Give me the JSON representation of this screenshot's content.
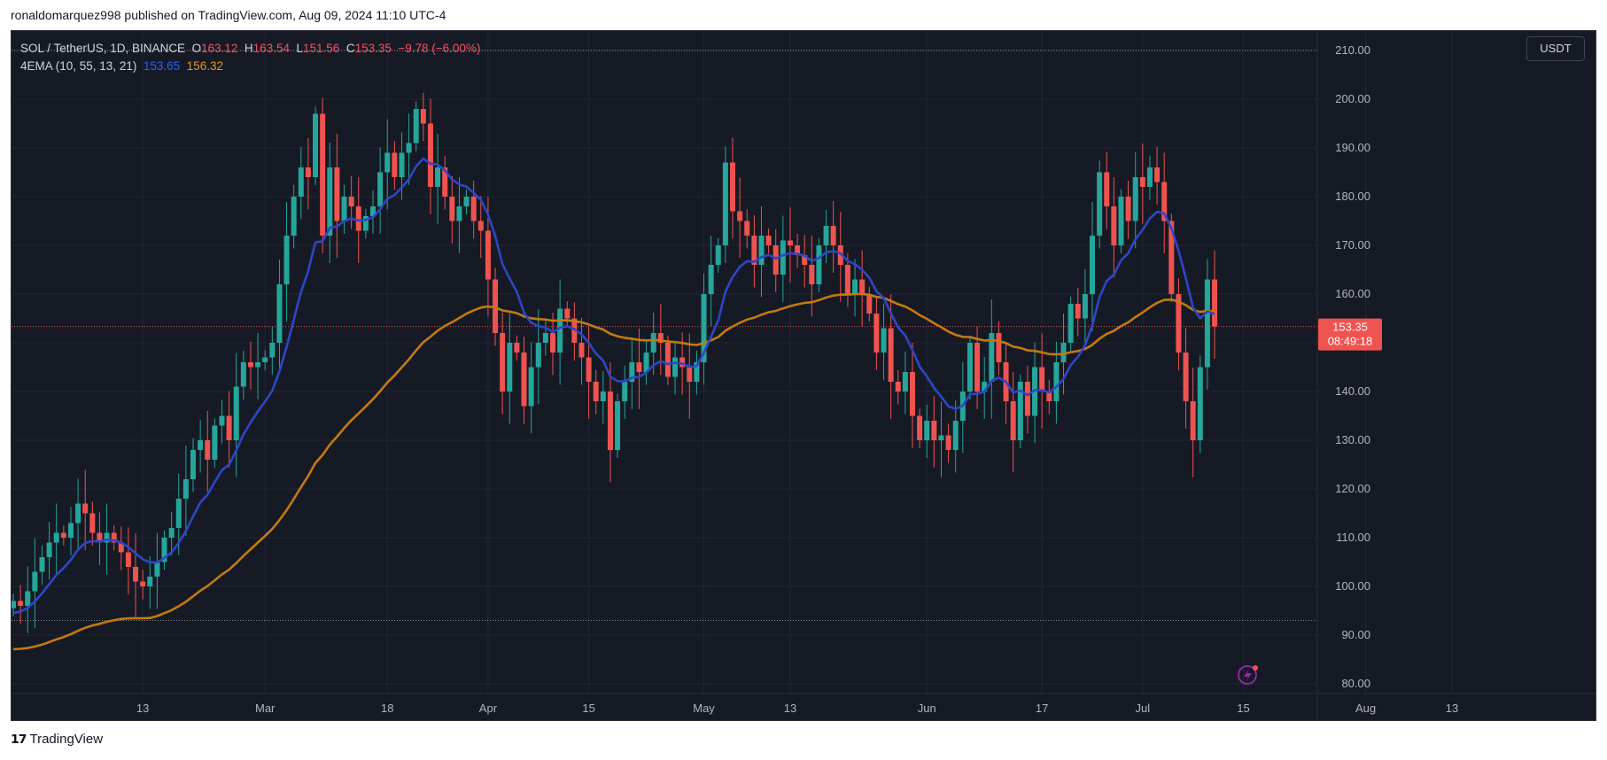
{
  "publish_line": "ronaldomarquez998 published on TradingView.com, Aug 09, 2024 11:10 UTC-4",
  "legend": {
    "symbol": "SOL / TetherUS, 1D, BINANCE",
    "o_label": "O",
    "o": "163.12",
    "h_label": "H",
    "h": "163.54",
    "l_label": "L",
    "l": "151.56",
    "c_label": "C",
    "c": "153.35",
    "change": "−9.78 (−6.00%)",
    "indicator": "4EMA (10, 55, 13, 21)",
    "ema_fast": "153.65",
    "ema_slow": "156.32"
  },
  "currency_button": "USDT",
  "price_tag": {
    "price": "153.35",
    "countdown": "08:49:18"
  },
  "footer_brand": "TradingView",
  "colors": {
    "background": "#161a25",
    "grid": "#232734",
    "up": "#26a69a",
    "down": "#ef5350",
    "ema_fast": "#2e46c8",
    "ema_slow": "#c47a12",
    "axis_text": "#b2b5be"
  },
  "chart_data": {
    "type": "candlestick",
    "title": "SOL / TetherUS, 1D, BINANCE",
    "ylim": [
      78,
      214
    ],
    "y_ticks": [
      "80.00",
      "90.00",
      "100.00",
      "110.00",
      "120.00",
      "130.00",
      "140.00",
      "150.00",
      "160.00",
      "170.00",
      "180.00",
      "190.00",
      "200.00",
      "210.00"
    ],
    "x_ticks": [
      {
        "label": "13",
        "day": -17
      },
      {
        "label": "Mar",
        "day": 0
      },
      {
        "label": "18",
        "day": 17
      },
      {
        "label": "Apr",
        "day": 31
      },
      {
        "label": "15",
        "day": 45
      },
      {
        "label": "May",
        "day": 61
      },
      {
        "label": "13",
        "day": 73
      },
      {
        "label": "Jun",
        "day": 92
      },
      {
        "label": "17",
        "day": 108
      },
      {
        "label": "Jul",
        "day": 122
      },
      {
        "label": "15",
        "day": 136
      },
      {
        "label": "Aug",
        "day": 153
      },
      {
        "label": "13",
        "day": 165
      }
    ],
    "horizontal_lines": [
      210,
      93
    ],
    "last_price": 153.35,
    "closes": [
      97,
      96,
      99,
      103,
      106,
      109,
      111,
      110,
      113,
      117,
      115,
      111,
      109,
      111,
      109,
      107,
      104,
      101,
      100,
      102,
      105,
      110,
      112,
      118,
      122,
      128,
      130,
      126,
      133,
      135,
      130,
      141,
      146,
      145,
      146,
      147,
      150,
      162,
      172,
      180,
      186,
      184,
      197,
      172,
      186,
      175,
      180,
      178,
      173,
      176,
      178,
      185,
      189,
      184,
      189,
      191,
      198,
      195,
      182,
      186,
      180,
      175,
      178,
      180,
      175,
      173,
      163,
      152,
      140,
      150,
      148,
      137,
      145,
      150,
      152,
      148,
      157,
      155,
      150,
      147,
      142,
      138,
      140,
      128,
      138,
      142,
      146,
      144,
      148,
      152,
      150,
      143,
      147,
      145,
      142,
      146,
      160,
      166,
      170,
      187,
      177,
      175,
      172,
      166,
      172,
      170,
      164,
      171,
      170,
      168,
      166,
      162,
      170,
      174,
      170,
      166,
      160,
      163,
      160,
      156,
      148,
      153,
      142,
      140,
      144,
      135,
      130,
      134,
      130,
      131,
      128,
      134,
      140,
      150,
      140,
      142,
      152,
      146,
      138,
      130,
      142,
      135,
      145,
      140,
      138,
      146,
      150,
      158,
      155,
      160,
      172,
      185,
      178,
      170,
      180,
      175,
      184,
      182,
      186,
      183,
      175,
      160,
      148,
      138,
      130,
      145,
      163,
      153.35
    ],
    "ema_fast_last": 153.65,
    "ema_slow_last": 156.32
  }
}
